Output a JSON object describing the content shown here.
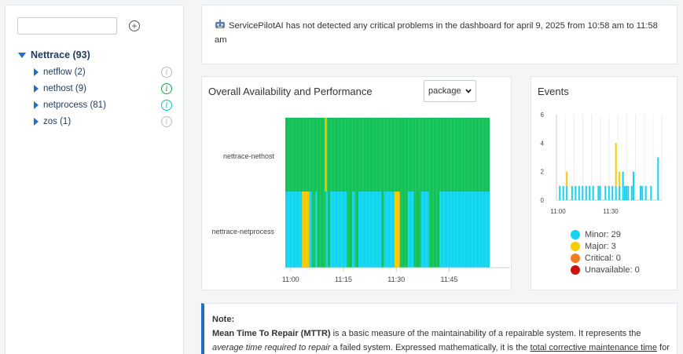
{
  "sidebar": {
    "search_value": "",
    "root": {
      "label": "Nettrace (93)"
    },
    "items": [
      {
        "label": "netflow (2)",
        "status": "grey"
      },
      {
        "label": "nethost (9)",
        "status": "green"
      },
      {
        "label": "netprocess (81)",
        "status": "teal"
      },
      {
        "label": "zos (1)",
        "status": "grey"
      }
    ]
  },
  "banner": {
    "icon": "robot-icon",
    "message": "ServicePilotAI has not detected any critical problems in the dashboard for april 9, 2025 from 10:58 am to 11:58 am"
  },
  "availability": {
    "title": "Overall Availability and Performance",
    "select_value": "package",
    "rows": [
      "nettrace-nethost",
      "nettrace-netprocess"
    ],
    "x_ticks": [
      "11:00",
      "11:15",
      "11:30",
      "11:45"
    ],
    "colors": {
      "ok": "#13c35a",
      "minor": "#11d6ef",
      "major": "#f5cc00"
    },
    "nethost_major_intervals": [
      [
        11.25,
        11.75
      ]
    ],
    "netprocess_segments": [
      {
        "start": 0,
        "end": 4.75,
        "state": "minor"
      },
      {
        "start": 4.75,
        "end": 6.75,
        "state": "major"
      },
      {
        "start": 6.75,
        "end": 7.5,
        "state": "minor"
      },
      {
        "start": 7.5,
        "end": 8.5,
        "state": "ok"
      },
      {
        "start": 8.5,
        "end": 9,
        "state": "minor"
      },
      {
        "start": 9,
        "end": 11.5,
        "state": "ok"
      },
      {
        "start": 11.5,
        "end": 12,
        "state": "minor"
      },
      {
        "start": 12,
        "end": 12.75,
        "state": "ok"
      },
      {
        "start": 12.75,
        "end": 17.5,
        "state": "minor"
      },
      {
        "start": 17.5,
        "end": 19,
        "state": "ok"
      },
      {
        "start": 19,
        "end": 19.75,
        "state": "minor"
      },
      {
        "start": 19.75,
        "end": 20.75,
        "state": "ok"
      },
      {
        "start": 20.75,
        "end": 27.25,
        "state": "minor"
      },
      {
        "start": 27.25,
        "end": 28,
        "state": "ok"
      },
      {
        "start": 28,
        "end": 31,
        "state": "minor"
      },
      {
        "start": 31,
        "end": 32.5,
        "state": "major"
      },
      {
        "start": 32.5,
        "end": 34.75,
        "state": "ok"
      },
      {
        "start": 34.75,
        "end": 36.5,
        "state": "minor"
      },
      {
        "start": 36.5,
        "end": 38.5,
        "state": "ok"
      },
      {
        "start": 38.5,
        "end": 40.75,
        "state": "minor"
      },
      {
        "start": 40.75,
        "end": 43.75,
        "state": "ok"
      },
      {
        "start": 43.75,
        "end": 58,
        "state": "minor"
      }
    ]
  },
  "events": {
    "title": "Events",
    "y_ticks": [
      "0",
      "2",
      "4",
      "6"
    ],
    "x_ticks": [
      "11:00",
      "11:30"
    ],
    "minor_bars": [
      {
        "m": 1,
        "v": 1
      },
      {
        "m": 3,
        "v": 1
      },
      {
        "m": 5,
        "v": 1
      },
      {
        "m": 8,
        "v": 1
      },
      {
        "m": 10,
        "v": 1
      },
      {
        "m": 12,
        "v": 1
      },
      {
        "m": 14,
        "v": 1
      },
      {
        "m": 16,
        "v": 1
      },
      {
        "m": 18,
        "v": 1
      },
      {
        "m": 20,
        "v": 1
      },
      {
        "m": 23,
        "v": 1
      },
      {
        "m": 24,
        "v": 1
      },
      {
        "m": 27,
        "v": 1
      },
      {
        "m": 29,
        "v": 1
      },
      {
        "m": 31,
        "v": 1
      },
      {
        "m": 33,
        "v": 1
      },
      {
        "m": 35,
        "v": 1
      },
      {
        "m": 37,
        "v": 2
      },
      {
        "m": 38,
        "v": 1
      },
      {
        "m": 39,
        "v": 1
      },
      {
        "m": 40,
        "v": 1
      },
      {
        "m": 42,
        "v": 1
      },
      {
        "m": 43,
        "v": 2
      },
      {
        "m": 47,
        "v": 1
      },
      {
        "m": 48,
        "v": 1
      },
      {
        "m": 50,
        "v": 1
      },
      {
        "m": 53,
        "v": 1
      },
      {
        "m": 57,
        "v": 3
      }
    ],
    "major_bars": [
      {
        "m": 5,
        "base": 1,
        "v": 1
      },
      {
        "m": 33,
        "base": 1,
        "v": 3
      },
      {
        "m": 35,
        "base": 1,
        "v": 1
      }
    ],
    "legend": [
      {
        "label": "Minor: 29",
        "color": "#16d2ee"
      },
      {
        "label": "Major: 3",
        "color": "#f5cc00"
      },
      {
        "label": "Critical: 0",
        "color": "#f57c1f"
      },
      {
        "label": "Unavailable: 0",
        "color": "#cc1111"
      }
    ]
  },
  "note": {
    "heading": "Note:",
    "term": "Mean Time To Repair (MTTR)",
    "t1": " is a basic measure of the maintainability of a repairable system. It represents the ",
    "t2": "average time required to repair",
    "t3": " a failed system. Expressed mathematically, it is the ",
    "t4": "total corrective maintenance time",
    "t5": " for failures"
  }
}
